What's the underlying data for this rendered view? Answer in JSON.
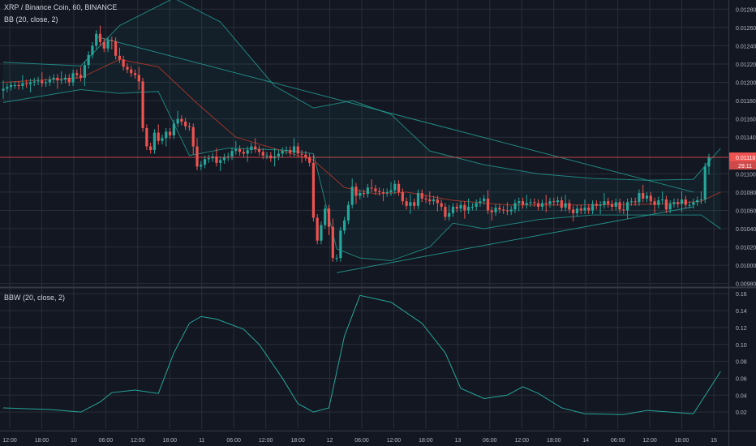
{
  "header": {
    "title": "XRP / Binance Coin, 60, BINANCE",
    "indicator_bb": "BB (20, close, 2)",
    "indicator_bbw": "BBW (20, close, 2)"
  },
  "price_axis": {
    "ticks": [
      "0.01280",
      "0.01260",
      "0.01240",
      "0.01220",
      "0.01200",
      "0.01180",
      "0.01160",
      "0.01140",
      "0.01100",
      "0.01080",
      "0.01060",
      "0.01040",
      "0.01020",
      "0.01000",
      "0.00980"
    ],
    "last_price": "0.01118",
    "countdown": "29:11"
  },
  "bbw_axis": {
    "ticks": [
      "0.16",
      "0.14",
      "0.12",
      "0.10",
      "0.08",
      "0.06",
      "0.04",
      "0.02"
    ]
  },
  "time_axis": {
    "ticks": [
      "12:00",
      "18:00",
      "10",
      "06:00",
      "12:00",
      "18:00",
      "11",
      "06:00",
      "12:00",
      "18:00",
      "12",
      "06:00",
      "12:00",
      "18:00",
      "13",
      "06:00",
      "12:00",
      "18:00",
      "14",
      "06:00",
      "12:00",
      "18:00",
      "15"
    ]
  },
  "colors": {
    "background": "#131722",
    "grid": "#2a2e39",
    "up": "#26a69a",
    "down": "#ef5350",
    "band": "#26a69a",
    "basis": "#c0392b",
    "last_price_line": "#ef5350",
    "axis_text": "#b2b5be"
  },
  "chart_data": [
    {
      "type": "candlestick",
      "symbol": "XRP / Binance Coin",
      "interval": "60",
      "exchange": "BINANCE",
      "indicator": "BB (20, close, 2)",
      "ylim": [
        0.00978,
        0.0129
      ],
      "last_price": 0.01118,
      "close": [
        0.01193,
        0.01195,
        0.01197,
        0.01197,
        0.01196,
        0.01199,
        0.01198,
        0.012,
        0.01201,
        0.01202,
        0.01199,
        0.012,
        0.01203,
        0.01205,
        0.01202,
        0.01203,
        0.01205,
        0.012,
        0.0121,
        0.01208,
        0.01205,
        0.01219,
        0.0123,
        0.0124,
        0.01253,
        0.01244,
        0.01237,
        0.01246,
        0.01245,
        0.01229,
        0.01225,
        0.01217,
        0.01214,
        0.0121,
        0.01208,
        0.01201,
        0.0115,
        0.0113,
        0.01126,
        0.01145,
        0.01136,
        0.01139,
        0.01146,
        0.01142,
        0.01155,
        0.0116,
        0.01157,
        0.01152,
        0.01151,
        0.0113,
        0.01108,
        0.0111,
        0.01116,
        0.01117,
        0.01119,
        0.01112,
        0.01115,
        0.01118,
        0.01119,
        0.01125,
        0.01127,
        0.01124,
        0.01122,
        0.01126,
        0.0113,
        0.01127,
        0.01124,
        0.0112,
        0.0112,
        0.01117,
        0.01119,
        0.01122,
        0.01125,
        0.01126,
        0.01123,
        0.0113,
        0.01122,
        0.01121,
        0.01118,
        0.01112,
        0.01052,
        0.01027,
        0.01044,
        0.01062,
        0.01042,
        0.01008,
        0.01008,
        0.01038,
        0.01049,
        0.01066,
        0.01086,
        0.01076,
        0.01079,
        0.01078,
        0.01085,
        0.01084,
        0.01081,
        0.0108,
        0.01079,
        0.0108,
        0.01082,
        0.01089,
        0.0108,
        0.0107,
        0.01065,
        0.01069,
        0.01065,
        0.01079,
        0.01073,
        0.01072,
        0.0107,
        0.01072,
        0.01068,
        0.01064,
        0.01053,
        0.01057,
        0.01064,
        0.01062,
        0.01066,
        0.0106,
        0.01064,
        0.01064,
        0.01068,
        0.0107,
        0.01073,
        0.0106,
        0.01058,
        0.01063,
        0.01061,
        0.0106,
        0.01059,
        0.01061,
        0.01068,
        0.0107,
        0.01066,
        0.01068,
        0.01069,
        0.01068,
        0.01064,
        0.01068,
        0.01067,
        0.0107,
        0.01069,
        0.01071,
        0.01063,
        0.01068,
        0.01061,
        0.01057,
        0.01062,
        0.0106,
        0.01063,
        0.0106,
        0.01067,
        0.01065,
        0.01066,
        0.0107,
        0.01067,
        0.01064,
        0.01069,
        0.01061,
        0.0106,
        0.01069,
        0.0107,
        0.01069,
        0.01079,
        0.01073,
        0.01076,
        0.0107,
        0.01066,
        0.01071,
        0.01072,
        0.01061,
        0.01067,
        0.01069,
        0.01067,
        0.01072,
        0.01066,
        0.01066,
        0.01069,
        0.01071,
        0.01072,
        0.01108,
        0.01118
      ],
      "upper_band_approx": [
        [
          0,
          0.01222
        ],
        [
          20,
          0.01218
        ],
        [
          30,
          0.01262
        ],
        [
          44,
          0.01292
        ],
        [
          56,
          0.01266
        ],
        [
          70,
          0.01196
        ],
        [
          80,
          0.01172
        ],
        [
          90,
          0.0118
        ],
        [
          100,
          0.01165
        ],
        [
          110,
          0.01125
        ],
        [
          124,
          0.0111
        ],
        [
          138,
          0.011
        ],
        [
          152,
          0.01095
        ],
        [
          166,
          0.01093
        ],
        [
          178,
          0.01094
        ],
        [
          185,
          0.01128
        ]
      ],
      "basis_approx": [
        [
          0,
          0.012
        ],
        [
          20,
          0.01205
        ],
        [
          30,
          0.01225
        ],
        [
          40,
          0.01217
        ],
        [
          50,
          0.01177
        ],
        [
          60,
          0.0114
        ],
        [
          72,
          0.01125
        ],
        [
          80,
          0.01115
        ],
        [
          88,
          0.01085
        ],
        [
          96,
          0.01078
        ],
        [
          104,
          0.0108
        ],
        [
          116,
          0.01071
        ],
        [
          130,
          0.01066
        ],
        [
          150,
          0.01066
        ],
        [
          170,
          0.01067
        ],
        [
          180,
          0.0107
        ],
        [
          185,
          0.0108
        ]
      ],
      "lower_band_approx": [
        [
          0,
          0.01178
        ],
        [
          20,
          0.01192
        ],
        [
          30,
          0.01188
        ],
        [
          40,
          0.0119
        ],
        [
          48,
          0.0112
        ],
        [
          58,
          0.01128
        ],
        [
          72,
          0.01126
        ],
        [
          80,
          0.01122
        ],
        [
          86,
          0.01018
        ],
        [
          92,
          0.01008
        ],
        [
          100,
          0.01005
        ],
        [
          110,
          0.0102
        ],
        [
          116,
          0.01046
        ],
        [
          124,
          0.0104
        ],
        [
          138,
          0.0105
        ],
        [
          152,
          0.01055
        ],
        [
          166,
          0.01055
        ],
        [
          180,
          0.01055
        ],
        [
          185,
          0.0104
        ]
      ],
      "trendlines": [
        {
          "from": [
            24,
            0.0125
          ],
          "to": [
            178,
            0.0108
          ]
        },
        {
          "from": [
            86,
            0.00992
          ],
          "to": [
            178,
            0.01064
          ]
        }
      ]
    },
    {
      "type": "line",
      "indicator": "BBW (20, close, 2)",
      "ylim": [
        0.0,
        0.165
      ],
      "points": [
        [
          0,
          0.025
        ],
        [
          12,
          0.023
        ],
        [
          20,
          0.02
        ],
        [
          25,
          0.032
        ],
        [
          28,
          0.043
        ],
        [
          34,
          0.046
        ],
        [
          40,
          0.042
        ],
        [
          44,
          0.09
        ],
        [
          48,
          0.125
        ],
        [
          51,
          0.133
        ],
        [
          55,
          0.13
        ],
        [
          62,
          0.118
        ],
        [
          66,
          0.1
        ],
        [
          72,
          0.06
        ],
        [
          76,
          0.03
        ],
        [
          80,
          0.02
        ],
        [
          84,
          0.025
        ],
        [
          88,
          0.11
        ],
        [
          92,
          0.158
        ],
        [
          100,
          0.15
        ],
        [
          108,
          0.125
        ],
        [
          114,
          0.09
        ],
        [
          118,
          0.048
        ],
        [
          124,
          0.036
        ],
        [
          130,
          0.04
        ],
        [
          134,
          0.05
        ],
        [
          138,
          0.042
        ],
        [
          144,
          0.025
        ],
        [
          150,
          0.018
        ],
        [
          160,
          0.017
        ],
        [
          166,
          0.022
        ],
        [
          172,
          0.02
        ],
        [
          178,
          0.018
        ],
        [
          185,
          0.068
        ]
      ]
    }
  ]
}
